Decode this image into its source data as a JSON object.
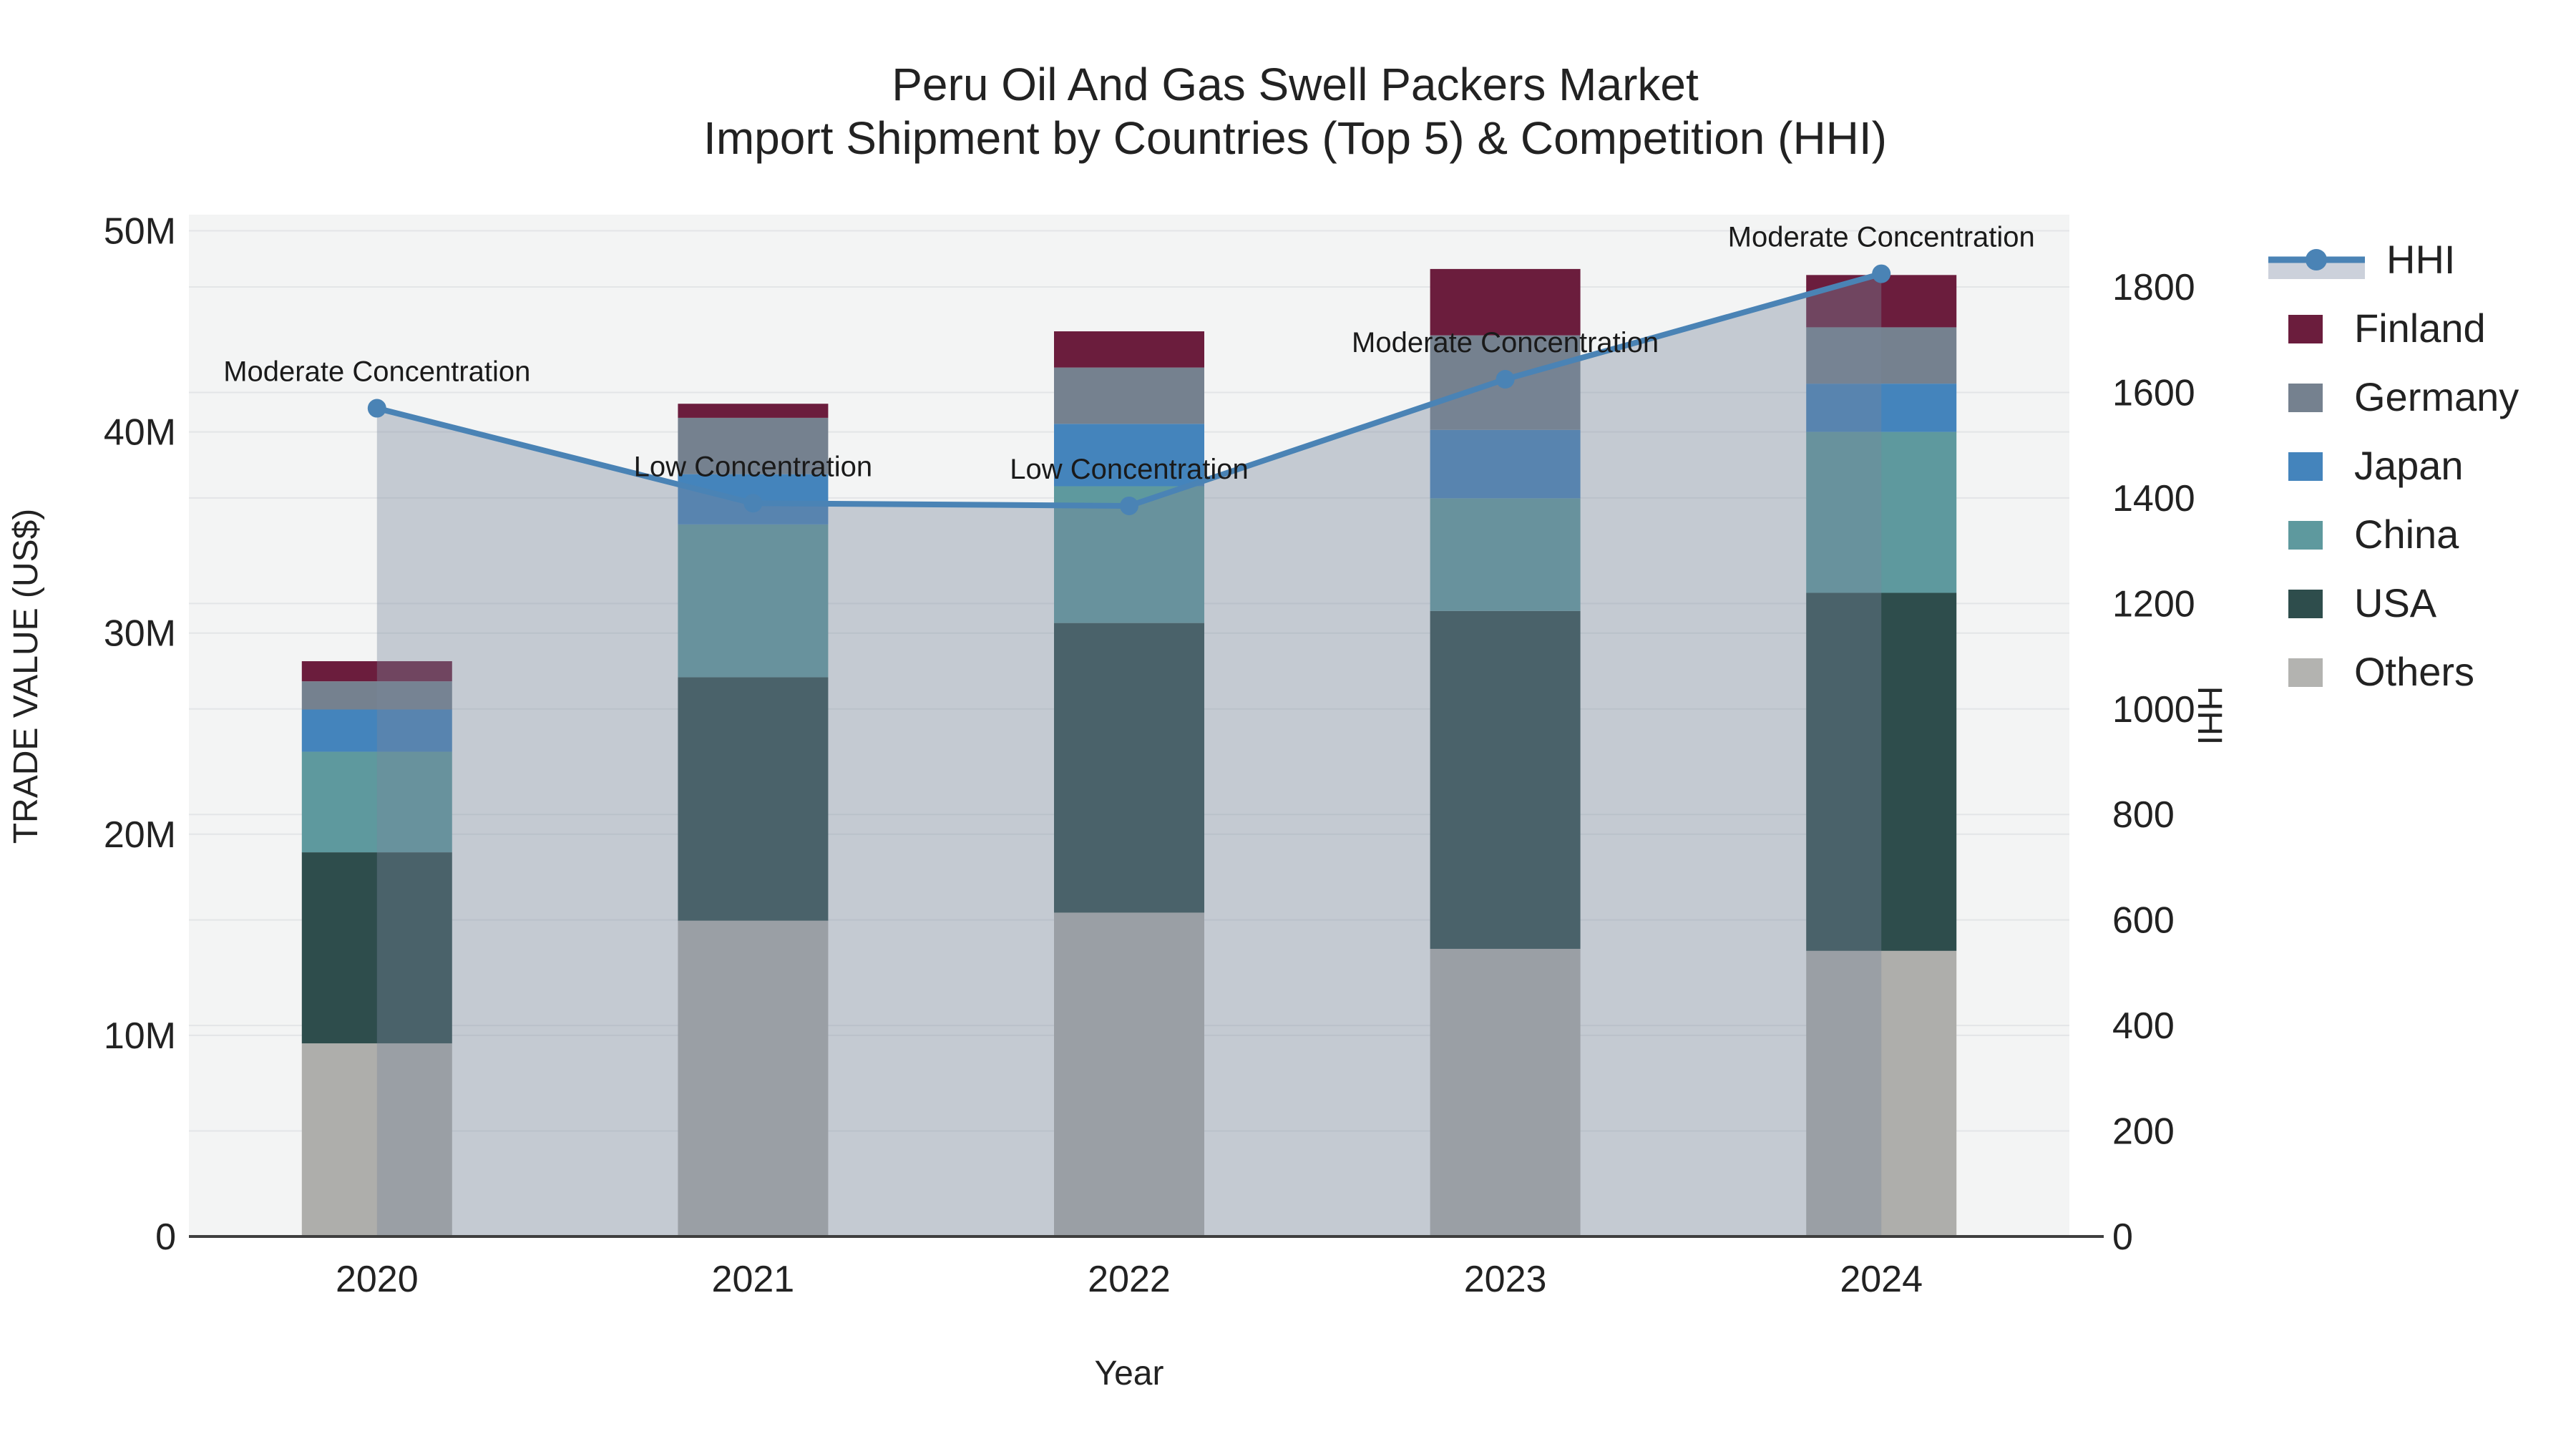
{
  "title": {
    "line1": "Peru Oil And Gas Swell Packers Market",
    "line2": "Import Shipment by Countries (Top 5) & Competition (HHI)"
  },
  "chart_data": {
    "type": "bar",
    "subtype": "stacked-bar-with-line",
    "categories": [
      "2020",
      "2021",
      "2022",
      "2023",
      "2024"
    ],
    "bar_value_unit": "millions US$",
    "series": [
      {
        "name": "Others",
        "color": "#aeaeab",
        "values": [
          9.6,
          15.7,
          16.1,
          14.3,
          14.2
        ]
      },
      {
        "name": "USA",
        "color": "#2e4d4c",
        "values": [
          9.5,
          12.1,
          14.4,
          16.8,
          17.8
        ]
      },
      {
        "name": "China",
        "color": "#5e999e",
        "values": [
          5.0,
          7.6,
          6.8,
          5.6,
          8.0
        ]
      },
      {
        "name": "Japan",
        "color": "#4484bc",
        "values": [
          2.1,
          2.5,
          3.1,
          3.4,
          2.4
        ]
      },
      {
        "name": "Germany",
        "color": "#75818f",
        "values": [
          1.4,
          2.8,
          2.8,
          4.7,
          2.8
        ]
      },
      {
        "name": "Finland",
        "color": "#6b1d3d",
        "values": [
          1.0,
          0.7,
          1.8,
          3.3,
          2.6
        ]
      }
    ],
    "line_series": {
      "name": "HHI",
      "color": "#4a83b5",
      "area_fill": "rgba(121,135,156,0.38)",
      "values": [
        1570,
        1390,
        1385,
        1625,
        1825
      ]
    },
    "annotations": [
      "Moderate Concentration",
      "Low Concentration",
      "Low Concentration",
      "Moderate Concentration",
      "Moderate Concentration"
    ],
    "xlabel": "Year",
    "ylabel_left": "TRADE VALUE (US$)",
    "ylabel_right": "HHI",
    "y_left_ticks": [
      0,
      10,
      20,
      30,
      40,
      50
    ],
    "y_left_tick_suffix": "M",
    "y_left_range": [
      0,
      50.8
    ],
    "y_right_ticks": [
      0,
      200,
      400,
      600,
      800,
      1000,
      1200,
      1400,
      1600,
      1800
    ],
    "y_right_range": [
      0,
      1937
    ],
    "grid": "on",
    "legend_position": "right"
  },
  "legend": {
    "items": [
      {
        "label": "HHI",
        "type": "line",
        "color": "#4a83b5",
        "band_color": "#ccd1db"
      },
      {
        "label": "Finland",
        "type": "swatch",
        "color": "#6b1d3d"
      },
      {
        "label": "Germany",
        "type": "swatch",
        "color": "#75818f"
      },
      {
        "label": "Japan",
        "type": "swatch",
        "color": "#4484bc"
      },
      {
        "label": "China",
        "type": "swatch",
        "color": "#5e999e"
      },
      {
        "label": "USA",
        "type": "swatch",
        "color": "#2e4d4c"
      },
      {
        "label": "Others",
        "type": "swatch",
        "color": "#b3b3b0"
      }
    ]
  },
  "colors": {
    "plot_bg": "#f3f4f4",
    "gridline": "#e3e5e7",
    "axis_line": "#3f3f3f",
    "text": "#222222"
  }
}
